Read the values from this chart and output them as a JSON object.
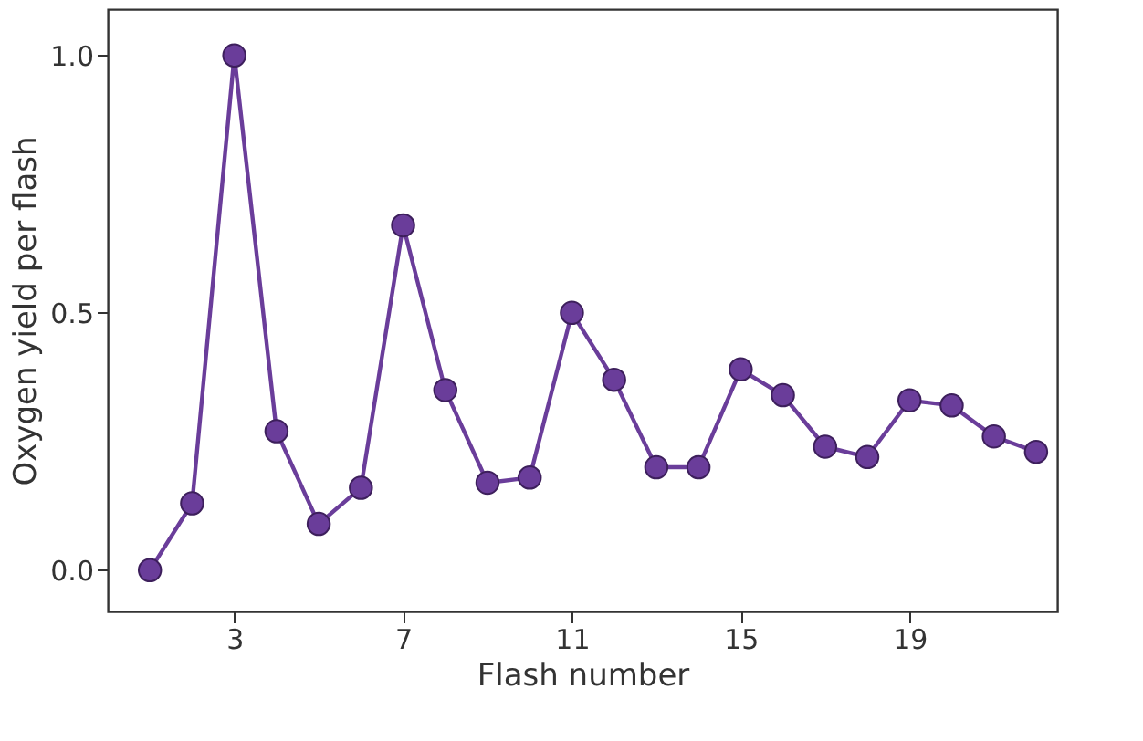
{
  "chart_data": {
    "type": "line",
    "xlabel": "Flash number",
    "ylabel": "Oxygen yield per flash",
    "x": [
      1,
      2,
      3,
      4,
      5,
      6,
      7,
      8,
      9,
      10,
      11,
      12,
      13,
      14,
      15,
      16,
      17,
      18,
      19,
      20,
      21,
      22
    ],
    "series": [
      {
        "color": "#6a3d9a",
        "values": [
          0.0,
          0.13,
          1.0,
          0.27,
          0.09,
          0.16,
          0.67,
          0.35,
          0.17,
          0.18,
          0.5,
          0.37,
          0.2,
          0.2,
          0.39,
          0.34,
          0.24,
          0.22,
          0.33,
          0.32,
          0.26,
          0.23
        ]
      }
    ],
    "xlim": [
      0,
      22.5
    ],
    "xticks": [
      3,
      7,
      11,
      15,
      19
    ],
    "ylim": [
      -0.08,
      1.09
    ],
    "yticks": [
      {
        "value": 0,
        "label": "0.0"
      },
      {
        "value": 0.5,
        "label": "0.5"
      },
      {
        "value": 1,
        "label": "1.0"
      }
    ],
    "marker": "circle",
    "line_style": "solid",
    "grid": false
  }
}
